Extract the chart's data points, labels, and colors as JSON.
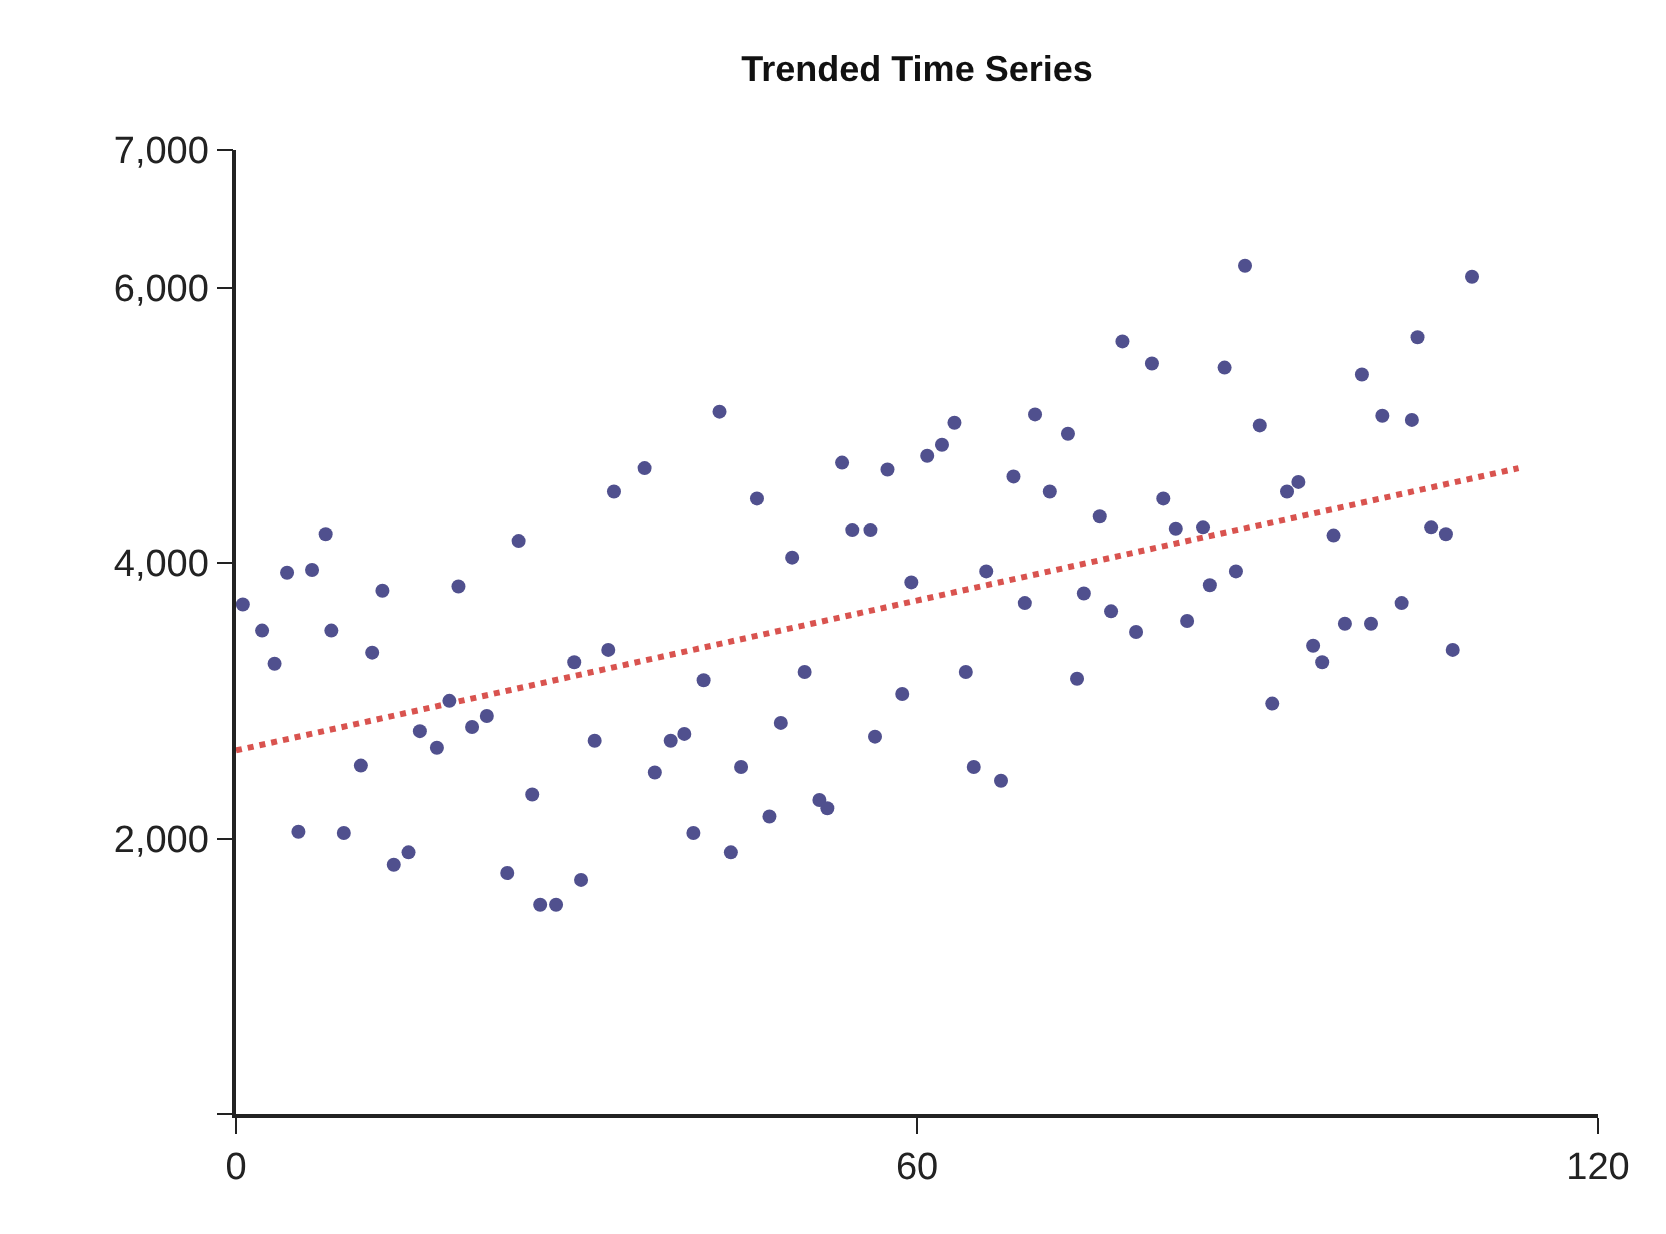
{
  "chart_data": {
    "type": "scatter",
    "title": "Trended Time Series",
    "xlim": [
      0,
      120
    ],
    "xticks": [
      0,
      60,
      120
    ],
    "ylim": [
      0,
      7000
    ],
    "yticks": [
      {
        "value": 0,
        "label": null
      },
      {
        "value": 2000,
        "label": "2,000"
      },
      {
        "value": 4000,
        "label": "4,000"
      },
      {
        "value": 6000,
        "label": "6,000"
      },
      {
        "value": 7000,
        "label": "7,000"
      }
    ],
    "grid": false,
    "series": [
      {
        "color": "#50508e",
        "marker": "circle",
        "x": [
          0.6,
          2.3,
          3.4,
          4.5,
          5.5,
          6.7,
          7.9,
          8.4,
          9.5,
          11.0,
          12.0,
          12.9,
          13.9,
          15.2,
          16.2,
          17.7,
          18.8,
          19.6,
          20.8,
          22.1,
          23.9,
          24.9,
          26.1,
          26.8,
          28.2,
          29.8,
          30.4,
          31.6,
          32.8,
          33.3,
          36.0,
          36.9,
          38.3,
          39.5,
          40.3,
          41.2,
          42.6,
          43.6,
          44.5,
          45.9,
          47.0,
          48.0,
          49.0,
          50.1,
          51.4,
          52.1,
          53.4,
          54.3,
          55.9,
          56.3,
          57.4,
          58.7,
          59.5,
          60.9,
          62.2,
          63.3,
          64.3,
          65.0,
          66.1,
          67.4,
          68.5,
          69.5,
          70.4,
          71.7,
          73.3,
          74.1,
          74.7,
          76.1,
          77.1,
          78.1,
          79.3,
          80.7,
          81.7,
          82.8,
          83.8,
          85.2,
          85.8,
          87.1,
          88.1,
          88.9,
          90.2,
          91.3,
          92.6,
          93.6,
          94.9,
          95.7,
          96.7,
          97.7,
          99.2,
          100.0,
          101.0,
          102.7,
          103.6,
          104.1,
          105.3,
          106.6,
          107.2,
          108.9
        ],
        "values": [
          3700,
          3510,
          3270,
          3930,
          2050,
          3950,
          4210,
          3510,
          2040,
          2530,
          3350,
          3800,
          1810,
          1900,
          2780,
          2660,
          3000,
          3830,
          2810,
          2890,
          1750,
          4160,
          2320,
          1520,
          1520,
          3280,
          1700,
          2710,
          3370,
          4520,
          4690,
          2480,
          2710,
          2760,
          2040,
          3150,
          5100,
          1900,
          2520,
          4470,
          2160,
          2840,
          4040,
          3210,
          2280,
          2220,
          4730,
          4240,
          4240,
          2740,
          4680,
          3050,
          3860,
          4780,
          4860,
          5020,
          3210,
          2520,
          3940,
          2420,
          4630,
          3710,
          5080,
          4520,
          4940,
          3160,
          3780,
          4340,
          3650,
          5610,
          3500,
          5450,
          4470,
          4250,
          3580,
          4260,
          3840,
          5420,
          3940,
          6160,
          5000,
          2980,
          4520,
          4590,
          3400,
          3280,
          4200,
          3560,
          5370,
          3560,
          5070,
          3710,
          5040,
          5640,
          4260,
          4210,
          3370,
          6080
        ]
      },
      {
        "type": "line",
        "color": "#d9534f",
        "marker": "none",
        "line_style": "dotted",
        "x": [
          0,
          113
        ],
        "values": [
          2640,
          4690
        ]
      }
    ]
  }
}
